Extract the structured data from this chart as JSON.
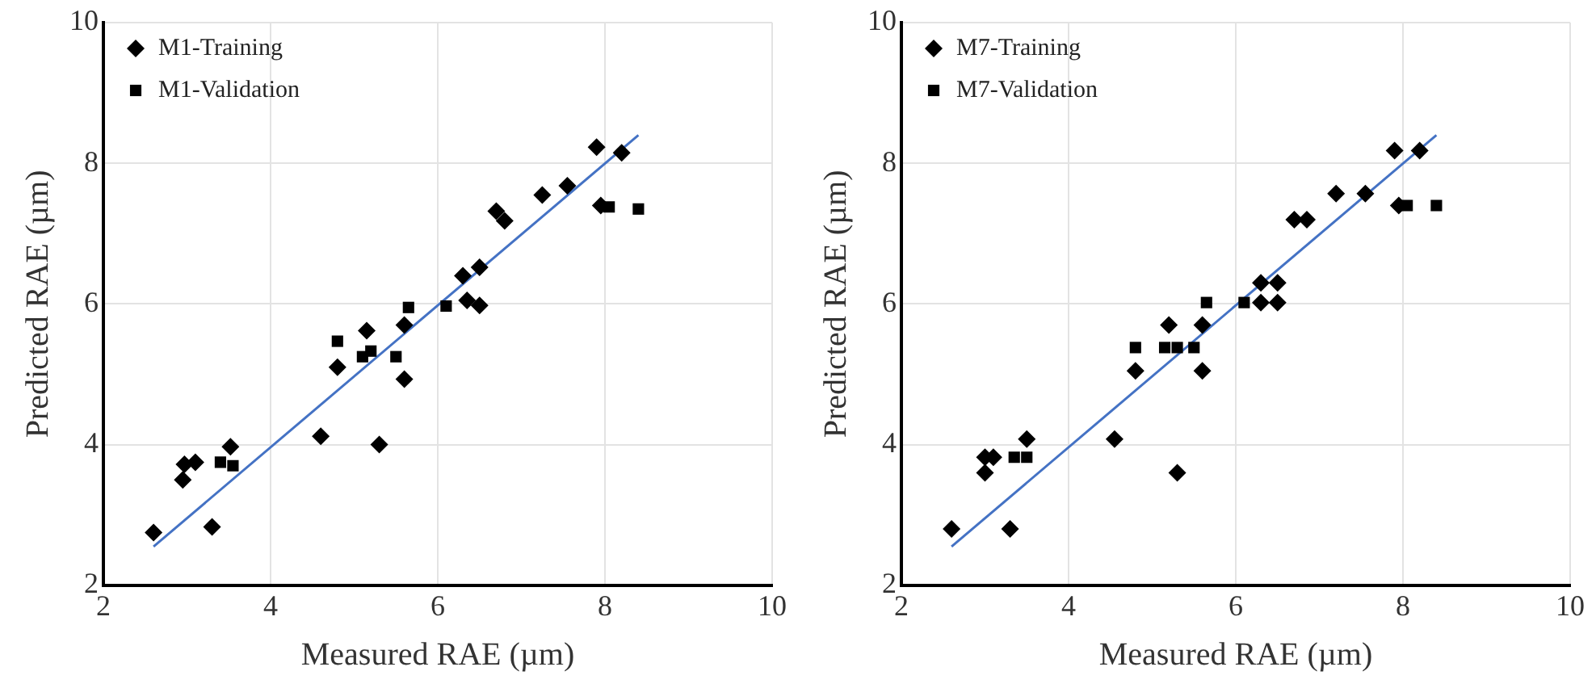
{
  "chart_data": [
    {
      "type": "scatter",
      "xlabel": "Measured RAE (µm)",
      "ylabel": "Predicted RAE (µm)",
      "xlim": [
        2,
        10
      ],
      "ylim": [
        2,
        10
      ],
      "xticks": [
        2,
        4,
        6,
        8,
        10
      ],
      "yticks": [
        2,
        4,
        6,
        8,
        10
      ],
      "grid": true,
      "legend": "top left",
      "series": [
        {
          "name": "M1-Training",
          "color": "#000000",
          "marker": "diamond",
          "x": [
            2.6,
            2.95,
            2.97,
            3.1,
            3.3,
            3.52,
            4.6,
            4.8,
            5.15,
            5.3,
            5.6,
            5.6,
            6.3,
            6.35,
            6.5,
            6.5,
            6.7,
            6.8,
            7.25,
            7.55,
            7.9,
            8.2,
            7.95
          ],
          "values": [
            2.75,
            3.5,
            3.72,
            3.75,
            2.83,
            3.97,
            4.12,
            5.1,
            5.62,
            4.0,
            4.93,
            5.7,
            6.4,
            6.05,
            5.98,
            6.52,
            7.32,
            7.18,
            7.55,
            7.68,
            8.23,
            8.15,
            7.4
          ]
        },
        {
          "name": "M1-Validation",
          "color": "#000000",
          "marker": "square",
          "x": [
            3.4,
            3.55,
            4.8,
            5.1,
            5.2,
            5.5,
            5.65,
            6.1,
            8.05,
            8.4
          ],
          "values": [
            3.75,
            3.7,
            5.47,
            5.25,
            5.33,
            5.25,
            5.95,
            5.97,
            7.38,
            7.35
          ]
        },
        {
          "type": "line",
          "color": "#4472c4",
          "marker": "none",
          "x": [
            2.6,
            8.4
          ],
          "values": [
            2.55,
            8.4
          ]
        }
      ]
    },
    {
      "type": "scatter",
      "xlabel": "Measured RAE (µm)",
      "ylabel": "Predicted RAE (µm)",
      "xlim": [
        2,
        10
      ],
      "ylim": [
        2,
        10
      ],
      "xticks": [
        2,
        4,
        6,
        8,
        10
      ],
      "yticks": [
        2,
        4,
        6,
        8,
        10
      ],
      "grid": true,
      "legend": "top left",
      "series": [
        {
          "name": "M7-Training",
          "color": "#000000",
          "marker": "diamond",
          "x": [
            2.6,
            3.0,
            3.0,
            3.1,
            3.3,
            3.5,
            4.55,
            4.8,
            5.2,
            5.3,
            5.6,
            5.6,
            6.3,
            6.3,
            6.5,
            6.5,
            6.7,
            6.85,
            7.2,
            7.55,
            7.9,
            8.2,
            7.95
          ],
          "values": [
            2.8,
            3.6,
            3.82,
            3.82,
            2.8,
            4.08,
            4.08,
            5.05,
            5.7,
            3.6,
            5.05,
            5.7,
            6.3,
            6.02,
            6.02,
            6.3,
            7.2,
            7.2,
            7.57,
            7.57,
            8.18,
            8.18,
            7.4
          ]
        },
        {
          "name": "M7-Validation",
          "color": "#000000",
          "marker": "square",
          "x": [
            3.35,
            3.5,
            4.8,
            5.15,
            5.3,
            5.5,
            5.65,
            6.1,
            8.05,
            8.4
          ],
          "values": [
            3.82,
            3.82,
            5.38,
            5.38,
            5.38,
            5.38,
            6.02,
            6.02,
            7.4,
            7.4
          ]
        },
        {
          "type": "line",
          "color": "#4472c4",
          "marker": "none",
          "x": [
            2.6,
            8.4
          ],
          "values": [
            2.55,
            8.4
          ]
        }
      ]
    }
  ]
}
